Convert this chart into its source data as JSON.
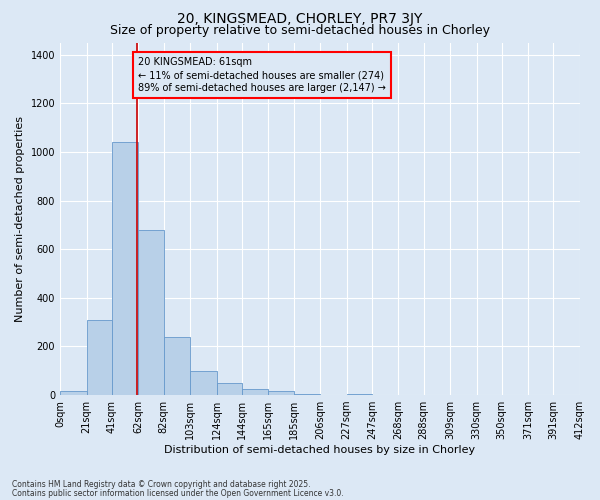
{
  "title1": "20, KINGSMEAD, CHORLEY, PR7 3JY",
  "title2": "Size of property relative to semi-detached houses in Chorley",
  "xlabel": "Distribution of semi-detached houses by size in Chorley",
  "ylabel": "Number of semi-detached properties",
  "footer1": "Contains HM Land Registry data © Crown copyright and database right 2025.",
  "footer2": "Contains public sector information licensed under the Open Government Licence v3.0.",
  "annotation_line1": "20 KINGSMEAD: 61sqm",
  "annotation_line2": "← 11% of semi-detached houses are smaller (274)",
  "annotation_line3": "89% of semi-detached houses are larger (2,147) →",
  "property_size": 61,
  "bar_edges": [
    0,
    21,
    41,
    62,
    82,
    103,
    124,
    144,
    165,
    185,
    206,
    227,
    247,
    268,
    288,
    309,
    330,
    350,
    371,
    391,
    412
  ],
  "bar_labels": [
    "0sqm",
    "21sqm",
    "41sqm",
    "62sqm",
    "82sqm",
    "103sqm",
    "124sqm",
    "144sqm",
    "165sqm",
    "185sqm",
    "206sqm",
    "227sqm",
    "247sqm",
    "268sqm",
    "288sqm",
    "309sqm",
    "330sqm",
    "350sqm",
    "371sqm",
    "391sqm",
    "412sqm"
  ],
  "bar_heights": [
    15,
    310,
    1040,
    680,
    240,
    100,
    50,
    25,
    18,
    5,
    0,
    5,
    0,
    0,
    0,
    0,
    0,
    0,
    0,
    0
  ],
  "bar_color": "#b8d0e8",
  "bar_edge_color": "#6699cc",
  "vline_color": "#cc0000",
  "vline_x": 61,
  "ylim": [
    0,
    1450
  ],
  "yticks": [
    0,
    200,
    400,
    600,
    800,
    1000,
    1200,
    1400
  ],
  "bg_color": "#dce8f5",
  "grid_color": "#ffffff",
  "title_fontsize": 10,
  "subtitle_fontsize": 9,
  "axis_label_fontsize": 8,
  "tick_fontsize": 7
}
